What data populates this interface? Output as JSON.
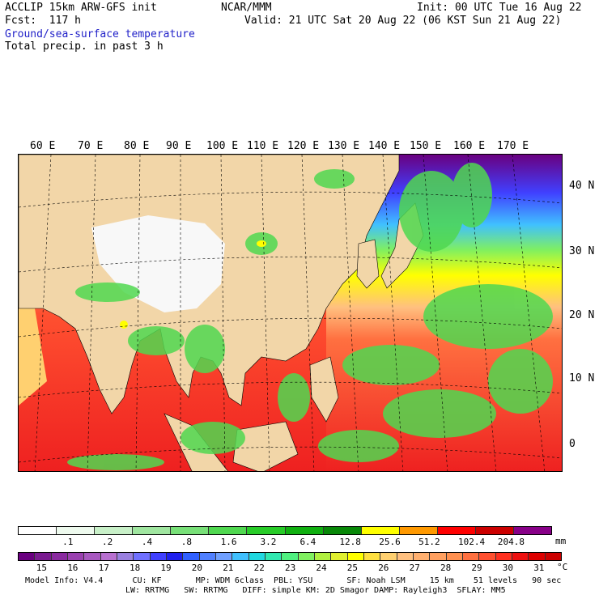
{
  "header": {
    "line1_left": "ACCLIP 15km ARW-GFS init",
    "line1_center": "NCAR/MMM",
    "line1_right": "Init: 00 UTC Tue 16 Aug 22",
    "line2_left": "Fcst:  117 h",
    "line2_right": "Valid: 21 UTC Sat 20 Aug 22 (06 KST Sun 21 Aug 22)",
    "field1": "Ground/sea-surface temperature",
    "field2": "Total precip. in past 3 h"
  },
  "map": {
    "lon_labels": [
      "60 E",
      "70 E",
      "80 E",
      "90 E",
      "100 E",
      "110 E",
      "120 E",
      "130 E",
      "140 E",
      "150 E",
      "160 E",
      "170 E"
    ],
    "lat_labels": [
      "40 N",
      "30 N",
      "20 N",
      "10 N",
      "0"
    ]
  },
  "precip_bar": {
    "labels": [
      ".1",
      ".2",
      ".4",
      ".8",
      "1.6",
      "3.2",
      "6.4",
      "12.8",
      "25.6",
      "51.2",
      "102.4",
      "204.8"
    ],
    "unit": "mm",
    "colors": [
      "#ffffff",
      "#eefaee",
      "#c8f0c8",
      "#a0e6a0",
      "#78e078",
      "#50d850",
      "#28cc28",
      "#10b010",
      "#088808",
      "#ffff00",
      "#ff9900",
      "#ff0000",
      "#cc0000",
      "#880088"
    ]
  },
  "temp_bar": {
    "labels": [
      "15",
      "16",
      "17",
      "18",
      "19",
      "20",
      "21",
      "22",
      "23",
      "24",
      "25",
      "26",
      "27",
      "28",
      "29",
      "30",
      "31"
    ],
    "unit": "°C",
    "colors": [
      "#6a0080",
      "#7a1a90",
      "#8a2aa0",
      "#9a40b0",
      "#a858c0",
      "#b870d0",
      "#9a80e0",
      "#7070ff",
      "#4040ff",
      "#2020ee",
      "#3060ff",
      "#5080ff",
      "#70a0ff",
      "#40c0ff",
      "#20d8e0",
      "#30e8b0",
      "#50f080",
      "#80f060",
      "#b0f040",
      "#e0f030",
      "#ffff00",
      "#ffe040",
      "#ffd070",
      "#ffc080",
      "#ffb070",
      "#ffa060",
      "#ff9050",
      "#ff7040",
      "#ff5030",
      "#ff3020",
      "#ee1010",
      "#dd0000",
      "#cc0000"
    ]
  },
  "footer": {
    "line1": "Model Info: V4.4      CU: KF       MP: WDM 6class  PBL: YSU       SF: Noah LSM     15 km    51 levels   90 sec",
    "line2": "LW: RRTMG   SW: RRTMG   DIFF: simple KM: 2D Smagor DAMP: Rayleigh3  SFLAY: MM5"
  }
}
